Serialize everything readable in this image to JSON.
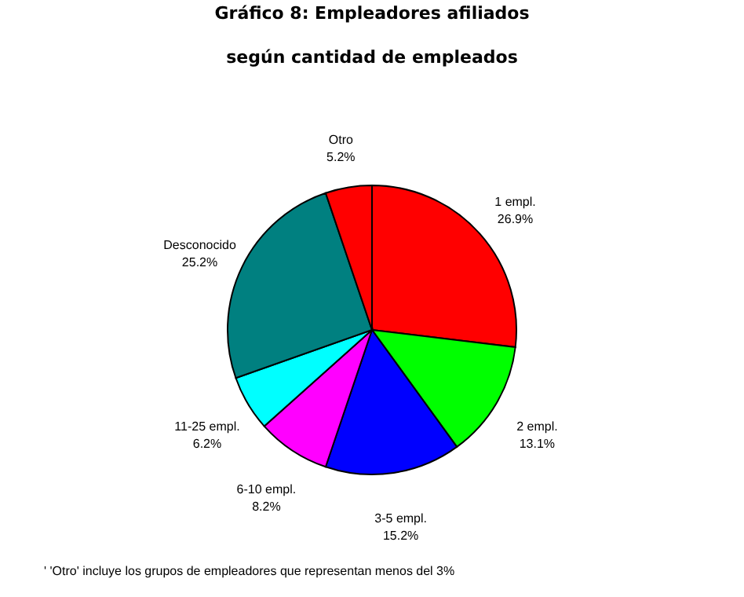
{
  "chart_data": {
    "type": "pie",
    "title": "Gráfico 8: Empleadores afiliados según cantidad de empleados",
    "categories": [
      "1 empl.",
      "2 empl.",
      "3-5 empl.",
      "6-10 empl.",
      "11-25 empl.",
      "Desconocido",
      "Otro"
    ],
    "values": [
      26.9,
      13.1,
      15.2,
      8.2,
      6.2,
      25.2,
      5.2
    ],
    "colors": [
      "#ff0000",
      "#00ff00",
      "#0000ff",
      "#ff00ff",
      "#00ffff",
      "#008080",
      "#ff0000"
    ],
    "value_labels": [
      "26.9%",
      "13.1%",
      "15.2%",
      "8.2%",
      "6.2%",
      "25.2%",
      "5.2%"
    ],
    "annotations": [
      "' 'Otro' incluye los grupos de empleadores que representan menos del 3%"
    ]
  }
}
